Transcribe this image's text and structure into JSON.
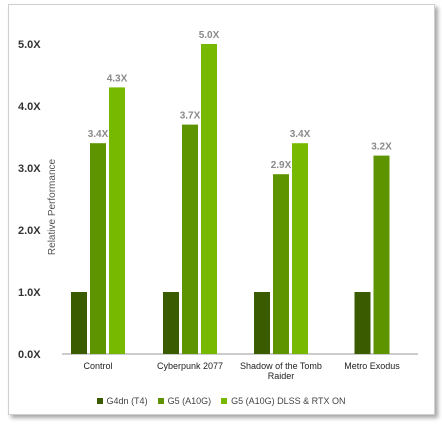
{
  "chart_data": {
    "type": "bar",
    "categories": [
      "Control",
      "Cyberpunk 2077",
      "Shadow of the Tomb Raider",
      "Metro Exodus"
    ],
    "series": [
      {
        "name": "G4dn (T4)",
        "color": "#3a5b00",
        "values": [
          1.0,
          1.0,
          1.0,
          1.0
        ],
        "labels": [
          "",
          "",
          "",
          ""
        ]
      },
      {
        "name": "G5 (A10G)",
        "color": "#5e9400",
        "values": [
          3.4,
          3.7,
          2.9,
          3.2
        ],
        "labels": [
          "3.4X",
          "3.7X",
          "2.9X",
          "3.2X"
        ]
      },
      {
        "name": "G5 (A10G) DLSS & RTX ON",
        "color": "#76b900",
        "values": [
          4.3,
          5.0,
          3.4,
          null
        ],
        "labels": [
          "4.3X",
          "5.0X",
          "3.4X",
          ""
        ]
      }
    ],
    "yticks": [
      "0.0X",
      "1.0X",
      "2.0X",
      "3.0X",
      "4.0X",
      "5.0X"
    ],
    "ylabel": "Relative Performance",
    "ylim": [
      0,
      5.2
    ],
    "grid": false,
    "legend": "bottom"
  }
}
